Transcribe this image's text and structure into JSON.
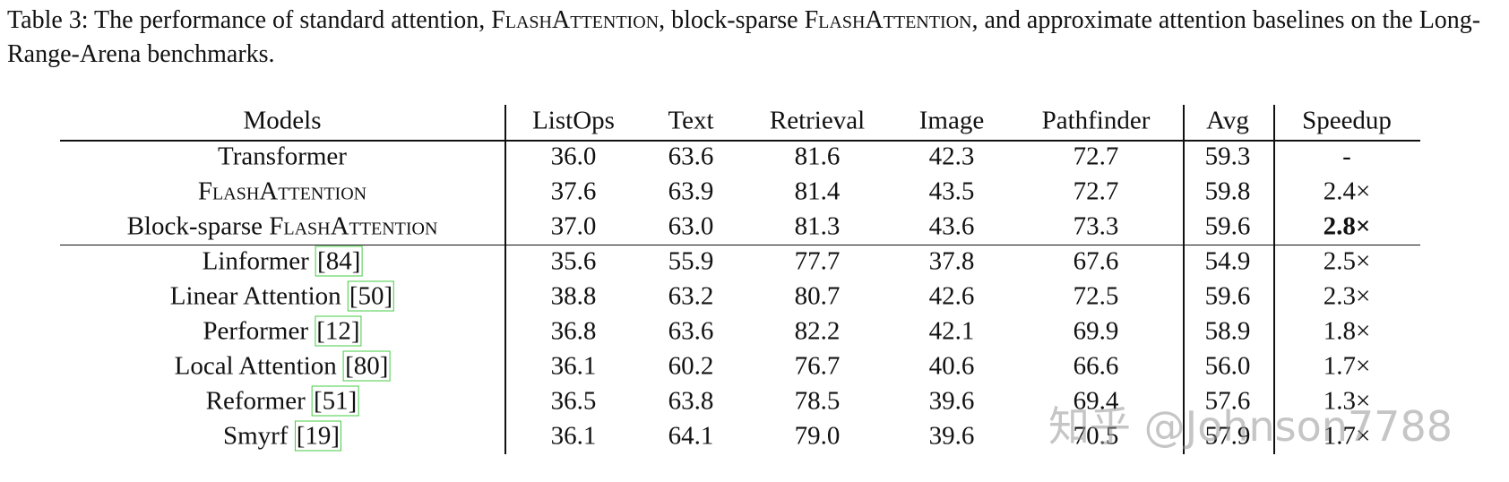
{
  "caption": [
    {
      "text": "Table 3: The performance of standard attention, "
    },
    {
      "text": "FlashAttention",
      "smallcaps": true
    },
    {
      "text": ", block-sparse "
    },
    {
      "text": "FlashAttention",
      "smallcaps": true
    },
    {
      "text": ", and approximate attention baselines on the Long-Range-Arena benchmarks."
    }
  ],
  "table": {
    "header": [
      "Models",
      "ListOps",
      "Text",
      "Retrieval",
      "Image",
      "Pathfinder",
      "Avg",
      "Speedup"
    ],
    "rows": [
      {
        "model": [
          {
            "text": "Transformer"
          }
        ],
        "cells": [
          {
            "text": "36.0"
          },
          {
            "text": "63.6"
          },
          {
            "text": "81.6"
          },
          {
            "text": "42.3"
          },
          {
            "text": "72.7"
          },
          {
            "text": "59.3"
          },
          {
            "text": "-"
          }
        ]
      },
      {
        "model": [
          {
            "text": "FlashAttention",
            "smallcaps": true
          }
        ],
        "cells": [
          {
            "text": "37.6"
          },
          {
            "text": "63.9"
          },
          {
            "text": "81.4"
          },
          {
            "text": "43.5"
          },
          {
            "text": "72.7"
          },
          {
            "text": "59.8"
          },
          {
            "text": "2.4×"
          }
        ]
      },
      {
        "model": [
          {
            "text": "Block-sparse "
          },
          {
            "text": "FlashAttention",
            "smallcaps": true
          }
        ],
        "cells": [
          {
            "text": "37.0"
          },
          {
            "text": "63.0"
          },
          {
            "text": "81.3"
          },
          {
            "text": "43.6"
          },
          {
            "text": "73.3"
          },
          {
            "text": "59.6"
          },
          {
            "text": "2.8×",
            "bold": true
          }
        ]
      },
      {
        "model": [
          {
            "text": "Linformer "
          }
        ],
        "cite": "[84]",
        "cells": [
          {
            "text": "35.6"
          },
          {
            "text": "55.9"
          },
          {
            "text": "77.7"
          },
          {
            "text": "37.8"
          },
          {
            "text": "67.6"
          },
          {
            "text": "54.9"
          },
          {
            "text": "2.5×"
          }
        ]
      },
      {
        "model": [
          {
            "text": "Linear Attention "
          }
        ],
        "cite": "[50]",
        "cells": [
          {
            "text": "38.8"
          },
          {
            "text": "63.2"
          },
          {
            "text": "80.7"
          },
          {
            "text": "42.6"
          },
          {
            "text": "72.5"
          },
          {
            "text": "59.6"
          },
          {
            "text": "2.3×"
          }
        ]
      },
      {
        "model": [
          {
            "text": "Performer "
          }
        ],
        "cite": "[12]",
        "cells": [
          {
            "text": "36.8"
          },
          {
            "text": "63.6"
          },
          {
            "text": "82.2"
          },
          {
            "text": "42.1"
          },
          {
            "text": "69.9"
          },
          {
            "text": "58.9"
          },
          {
            "text": "1.8×"
          }
        ]
      },
      {
        "model": [
          {
            "text": "Local Attention "
          }
        ],
        "cite": "[80]",
        "cells": [
          {
            "text": "36.1"
          },
          {
            "text": "60.2"
          },
          {
            "text": "76.7"
          },
          {
            "text": "40.6"
          },
          {
            "text": "66.6"
          },
          {
            "text": "56.0"
          },
          {
            "text": "1.7×"
          }
        ]
      },
      {
        "model": [
          {
            "text": "Reformer "
          }
        ],
        "cite": "[51]",
        "cells": [
          {
            "text": "36.5"
          },
          {
            "text": "63.8"
          },
          {
            "text": "78.5"
          },
          {
            "text": "39.6"
          },
          {
            "text": "69.4"
          },
          {
            "text": "57.6"
          },
          {
            "text": "1.3×"
          }
        ]
      },
      {
        "model": [
          {
            "text": "Smyrf "
          }
        ],
        "cite": "[19]",
        "cells": [
          {
            "text": "36.1"
          },
          {
            "text": "64.1"
          },
          {
            "text": "79.0"
          },
          {
            "text": "39.6"
          },
          {
            "text": "70.5"
          },
          {
            "text": "57.9"
          },
          {
            "text": "1.7×"
          }
        ]
      }
    ]
  },
  "watermark": "知乎 @Johnson7788"
}
